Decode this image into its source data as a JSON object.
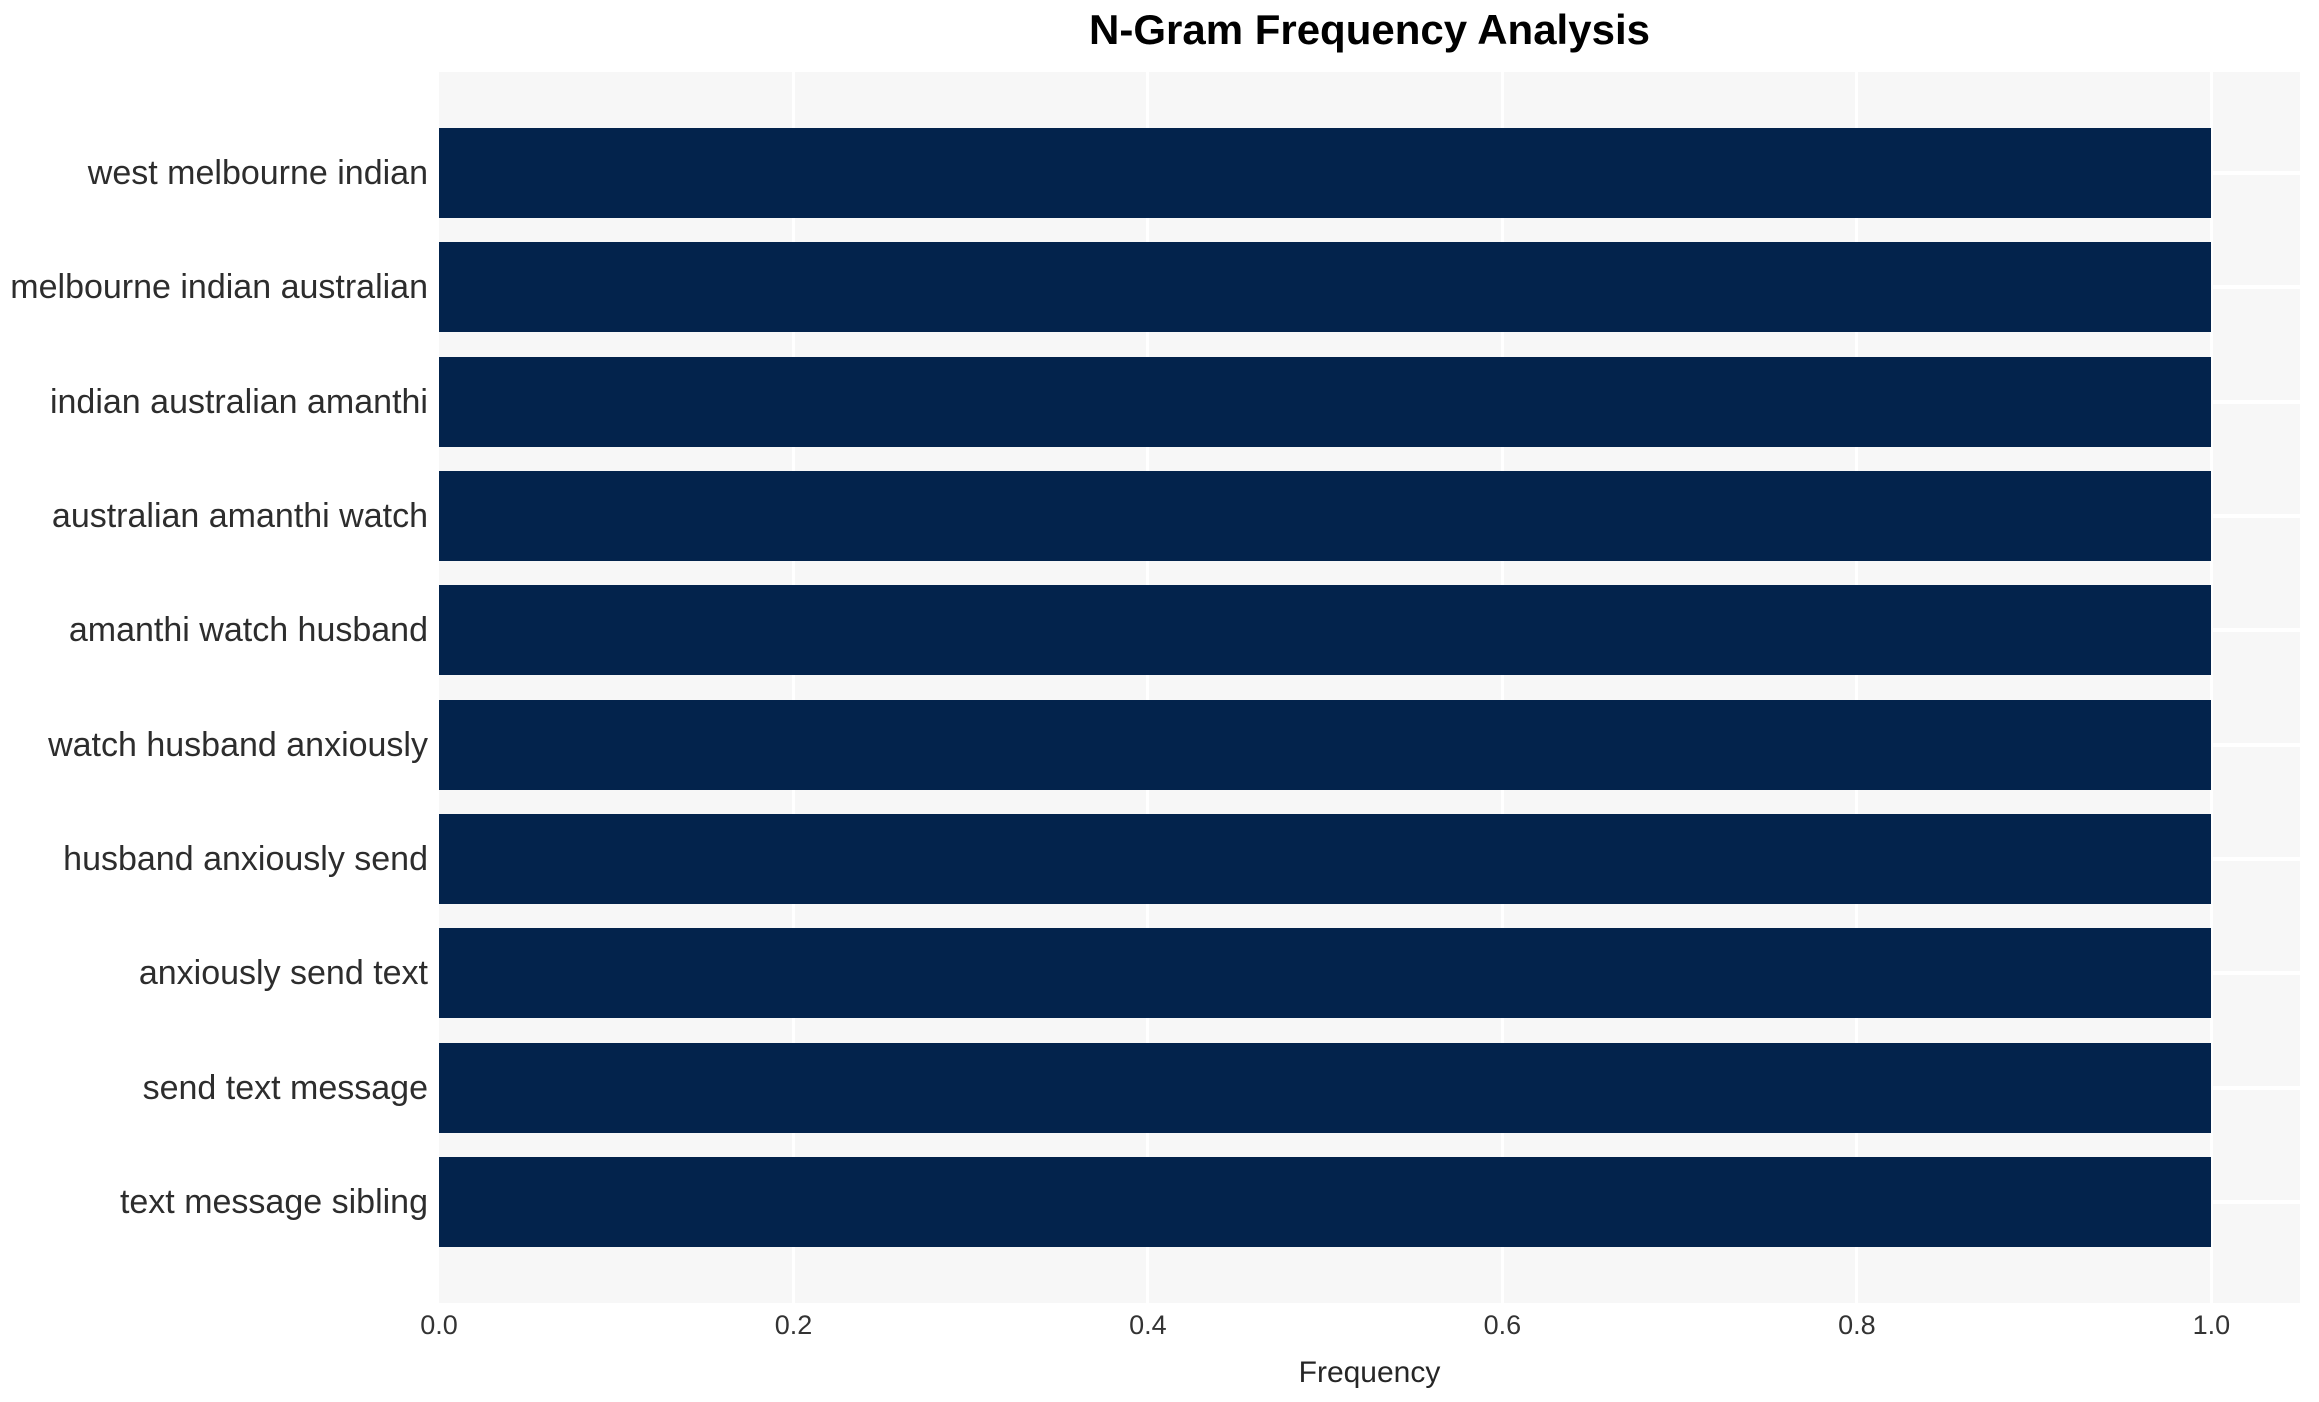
{
  "chart_data": {
    "type": "bar",
    "orientation": "horizontal",
    "title": "N-Gram Frequency Analysis",
    "xlabel": "Frequency",
    "ylabel": "",
    "categories": [
      "west melbourne indian",
      "melbourne indian australian",
      "indian australian amanthi",
      "australian amanthi watch",
      "amanthi watch husband",
      "watch husband anxiously",
      "husband anxiously send",
      "anxiously send text",
      "send text message",
      "text message sibling"
    ],
    "values": [
      1.0,
      1.0,
      1.0,
      1.0,
      1.0,
      1.0,
      1.0,
      1.0,
      1.0,
      1.0
    ],
    "x_ticks": [
      0.0,
      0.2,
      0.4,
      0.6,
      0.8,
      1.0
    ],
    "x_tick_labels": [
      "0.0",
      "0.2",
      "0.4",
      "0.6",
      "0.8",
      "1.0"
    ],
    "xlim": [
      0,
      1.05
    ],
    "grid": {
      "vertical_lines_at": "x ticks",
      "horizontal_lines_at": "bar centers",
      "gridline_color": "#ffffff",
      "visible": true
    },
    "legend": "none",
    "colors": {
      "bar": "#03234c",
      "plot_background": "#f7f7f7",
      "page_background": "#ffffff",
      "gridline": "#ffffff",
      "title_text": "#000000",
      "axis_tick_text": "#333333",
      "category_text": "#2d2d2d",
      "axis_label_text": "#262626"
    }
  }
}
